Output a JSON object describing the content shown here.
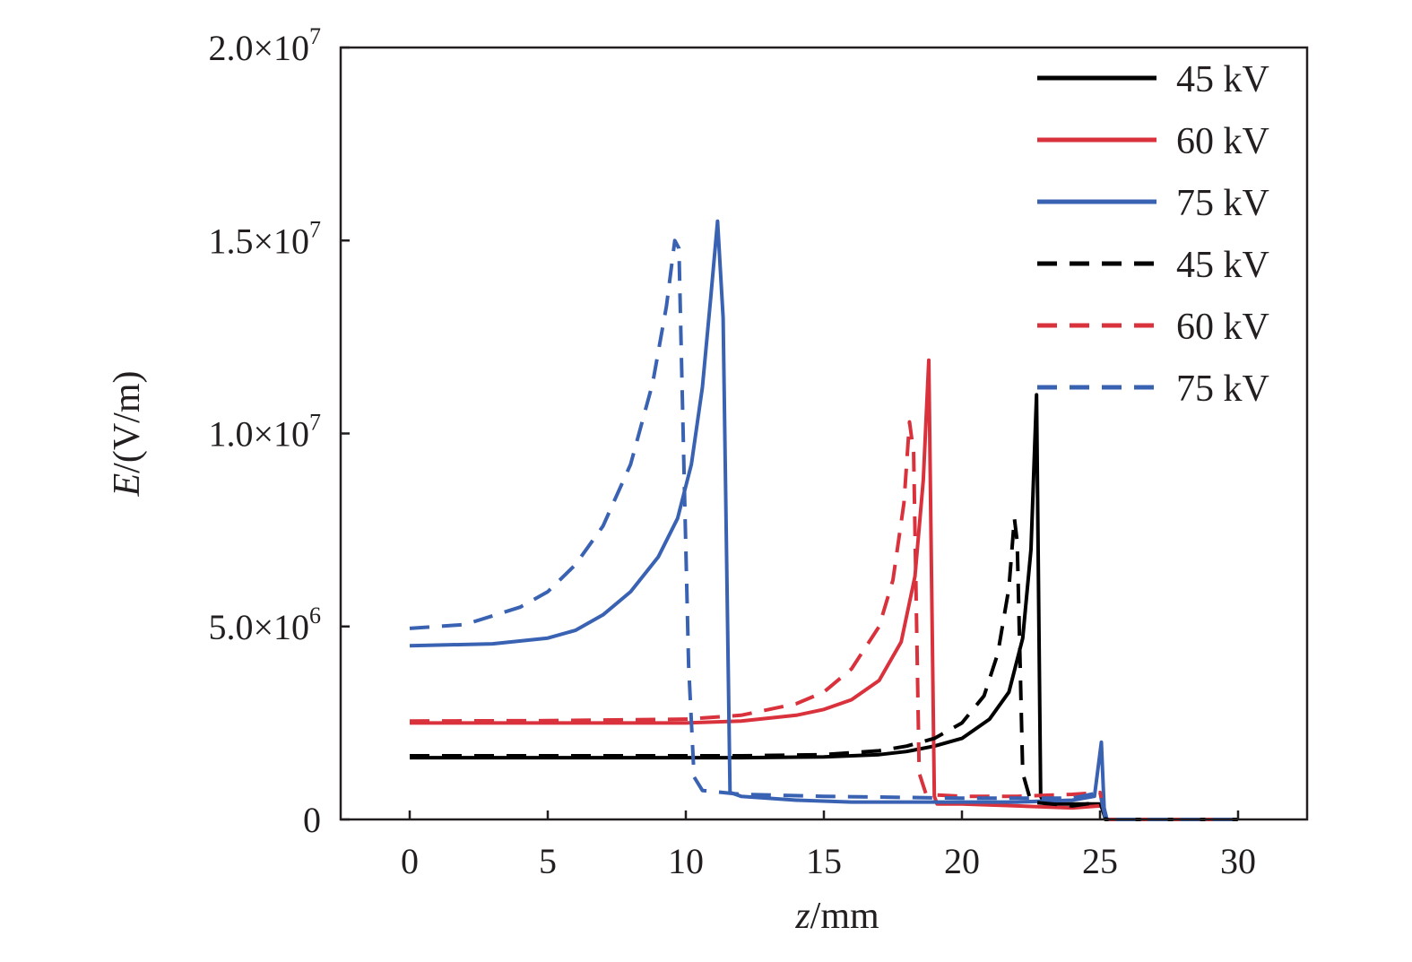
{
  "chart_data": {
    "type": "line",
    "xlabel": {
      "italic": "z",
      "rest": "/mm"
    },
    "ylabel": {
      "italic": "E",
      "rest": "/(V/m)"
    },
    "xlim": [
      -2.5,
      32.5
    ],
    "ylim": [
      0,
      20000000
    ],
    "x_ticks": [
      {
        "value": 0,
        "label": "0"
      },
      {
        "value": 5,
        "label": "5"
      },
      {
        "value": 10,
        "label": "10"
      },
      {
        "value": 15,
        "label": "15"
      },
      {
        "value": 20,
        "label": "20"
      },
      {
        "value": 25,
        "label": "25"
      },
      {
        "value": 30,
        "label": "30"
      }
    ],
    "y_ticks": [
      {
        "value": 0,
        "mantissa": "0",
        "exp": ""
      },
      {
        "value": 5000000,
        "mantissa": "5.0×10",
        "exp": "6"
      },
      {
        "value": 10000000,
        "mantissa": "1.0×10",
        "exp": "7"
      },
      {
        "value": 15000000,
        "mantissa": "1.5×10",
        "exp": "7"
      },
      {
        "value": 20000000,
        "mantissa": "2.0×10",
        "exp": "7"
      }
    ],
    "grid": false,
    "legend_position": "top-right",
    "series": [
      {
        "name": "45 kV",
        "color": "#000000",
        "dash": "solid",
        "points": [
          [
            0,
            1600000
          ],
          [
            5,
            1600000
          ],
          [
            10,
            1600000
          ],
          [
            12,
            1600000
          ],
          [
            15,
            1620000
          ],
          [
            17,
            1680000
          ],
          [
            18,
            1760000
          ],
          [
            19,
            1900000
          ],
          [
            20,
            2100000
          ],
          [
            21,
            2600000
          ],
          [
            21.7,
            3300000
          ],
          [
            22.2,
            4700000
          ],
          [
            22.5,
            7000000
          ],
          [
            22.7,
            11000000
          ],
          [
            22.85,
            600000
          ],
          [
            23,
            400000
          ],
          [
            24,
            400000
          ],
          [
            25,
            400000
          ],
          [
            25.1,
            300000
          ],
          [
            25.2,
            0
          ],
          [
            30,
            0
          ]
        ]
      },
      {
        "name": "60 kV",
        "color": "#d9323c",
        "dash": "solid",
        "points": [
          [
            0,
            2500000
          ],
          [
            5,
            2500000
          ],
          [
            10,
            2500000
          ],
          [
            12,
            2550000
          ],
          [
            14,
            2700000
          ],
          [
            15,
            2850000
          ],
          [
            16,
            3100000
          ],
          [
            17,
            3600000
          ],
          [
            17.8,
            4600000
          ],
          [
            18.3,
            6300000
          ],
          [
            18.6,
            8800000
          ],
          [
            18.8,
            11900000
          ],
          [
            19,
            600000
          ],
          [
            19.1,
            400000
          ],
          [
            20,
            400000
          ],
          [
            22,
            350000
          ],
          [
            24,
            300000
          ],
          [
            25,
            350000
          ],
          [
            25.1,
            300000
          ],
          [
            25.2,
            0
          ],
          [
            30,
            0
          ]
        ]
      },
      {
        "name": "75 kV",
        "color": "#3a62b3",
        "dash": "solid",
        "points": [
          [
            0,
            4500000
          ],
          [
            3,
            4550000
          ],
          [
            5,
            4700000
          ],
          [
            6,
            4900000
          ],
          [
            7,
            5300000
          ],
          [
            8,
            5900000
          ],
          [
            9,
            6800000
          ],
          [
            9.7,
            7800000
          ],
          [
            10.2,
            9200000
          ],
          [
            10.6,
            11200000
          ],
          [
            10.9,
            13500000
          ],
          [
            11.15,
            15500000
          ],
          [
            11.35,
            13000000
          ],
          [
            11.6,
            700000
          ],
          [
            12,
            600000
          ],
          [
            14,
            500000
          ],
          [
            16,
            450000
          ],
          [
            18,
            450000
          ],
          [
            20,
            450000
          ],
          [
            22,
            450000
          ],
          [
            24,
            500000
          ],
          [
            24.8,
            600000
          ],
          [
            25.05,
            2000000
          ],
          [
            25.15,
            300000
          ],
          [
            25.25,
            0
          ],
          [
            30,
            0
          ]
        ]
      },
      {
        "name": "45 kV",
        "color": "#000000",
        "dash": "dashed",
        "points": [
          [
            0,
            1650000
          ],
          [
            5,
            1650000
          ],
          [
            10,
            1650000
          ],
          [
            12,
            1650000
          ],
          [
            15,
            1680000
          ],
          [
            17,
            1780000
          ],
          [
            18,
            1900000
          ],
          [
            19,
            2100000
          ],
          [
            20,
            2500000
          ],
          [
            20.8,
            3200000
          ],
          [
            21.3,
            4300000
          ],
          [
            21.7,
            6000000
          ],
          [
            21.9,
            7800000
          ],
          [
            22,
            7200000
          ],
          [
            22.2,
            1200000
          ],
          [
            22.5,
            450000
          ],
          [
            24,
            350000
          ],
          [
            25,
            450000
          ],
          [
            25.2,
            0
          ],
          [
            30,
            0
          ]
        ]
      },
      {
        "name": "60 kV",
        "color": "#d9323c",
        "dash": "dashed",
        "points": [
          [
            0,
            2550000
          ],
          [
            5,
            2560000
          ],
          [
            10,
            2600000
          ],
          [
            12,
            2700000
          ],
          [
            14,
            3000000
          ],
          [
            15,
            3300000
          ],
          [
            16,
            3900000
          ],
          [
            17,
            5000000
          ],
          [
            17.5,
            6200000
          ],
          [
            17.9,
            8200000
          ],
          [
            18.1,
            10300000
          ],
          [
            18.25,
            9500000
          ],
          [
            18.45,
            1200000
          ],
          [
            18.7,
            650000
          ],
          [
            20,
            600000
          ],
          [
            22,
            600000
          ],
          [
            24,
            650000
          ],
          [
            25,
            700000
          ],
          [
            25.2,
            0
          ],
          [
            30,
            0
          ]
        ]
      },
      {
        "name": "75 kV",
        "color": "#3a62b3",
        "dash": "dashed",
        "points": [
          [
            0,
            4950000
          ],
          [
            2,
            5050000
          ],
          [
            4,
            5500000
          ],
          [
            5,
            5900000
          ],
          [
            6,
            6600000
          ],
          [
            7,
            7600000
          ],
          [
            8,
            9200000
          ],
          [
            8.8,
            11300000
          ],
          [
            9.3,
            13300000
          ],
          [
            9.6,
            15000000
          ],
          [
            9.75,
            14800000
          ],
          [
            9.95,
            8500000
          ],
          [
            10.1,
            4000000
          ],
          [
            10.3,
            1100000
          ],
          [
            10.6,
            750000
          ],
          [
            12,
            650000
          ],
          [
            15,
            600000
          ],
          [
            20,
            550000
          ],
          [
            24,
            550000
          ],
          [
            25,
            700000
          ],
          [
            25.2,
            0
          ],
          [
            30,
            0
          ]
        ]
      }
    ]
  }
}
